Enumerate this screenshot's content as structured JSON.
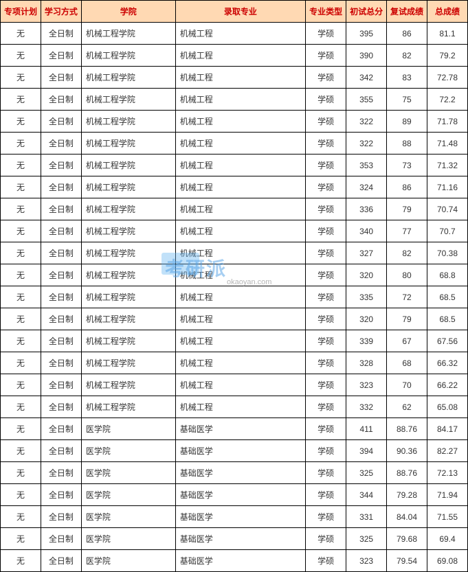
{
  "watermark": {
    "main": "考研派",
    "sub": "okaoyan.com"
  },
  "table": {
    "header_bg": "#ffd9b3",
    "header_color": "#cc0000",
    "border_color": "#000000",
    "columns": [
      {
        "label": "专项计划",
        "align": "center"
      },
      {
        "label": "学习方式",
        "align": "center"
      },
      {
        "label": "学院",
        "align": "left"
      },
      {
        "label": "录取专业",
        "align": "left"
      },
      {
        "label": "专业类型",
        "align": "center"
      },
      {
        "label": "初试总分",
        "align": "center"
      },
      {
        "label": "复试成绩",
        "align": "center"
      },
      {
        "label": "总成绩",
        "align": "center"
      }
    ],
    "rows": [
      [
        "无",
        "全日制",
        "机械工程学院",
        "机械工程",
        "学硕",
        "395",
        "86",
        "81.1"
      ],
      [
        "无",
        "全日制",
        "机械工程学院",
        "机械工程",
        "学硕",
        "390",
        "82",
        "79.2"
      ],
      [
        "无",
        "全日制",
        "机械工程学院",
        "机械工程",
        "学硕",
        "342",
        "83",
        "72.78"
      ],
      [
        "无",
        "全日制",
        "机械工程学院",
        "机械工程",
        "学硕",
        "355",
        "75",
        "72.2"
      ],
      [
        "无",
        "全日制",
        "机械工程学院",
        "机械工程",
        "学硕",
        "322",
        "89",
        "71.78"
      ],
      [
        "无",
        "全日制",
        "机械工程学院",
        "机械工程",
        "学硕",
        "322",
        "88",
        "71.48"
      ],
      [
        "无",
        "全日制",
        "机械工程学院",
        "机械工程",
        "学硕",
        "353",
        "73",
        "71.32"
      ],
      [
        "无",
        "全日制",
        "机械工程学院",
        "机械工程",
        "学硕",
        "324",
        "86",
        "71.16"
      ],
      [
        "无",
        "全日制",
        "机械工程学院",
        "机械工程",
        "学硕",
        "336",
        "79",
        "70.74"
      ],
      [
        "无",
        "全日制",
        "机械工程学院",
        "机械工程",
        "学硕",
        "340",
        "77",
        "70.7"
      ],
      [
        "无",
        "全日制",
        "机械工程学院",
        "机械工程",
        "学硕",
        "327",
        "82",
        "70.38"
      ],
      [
        "无",
        "全日制",
        "机械工程学院",
        "机械工程",
        "学硕",
        "320",
        "80",
        "68.8"
      ],
      [
        "无",
        "全日制",
        "机械工程学院",
        "机械工程",
        "学硕",
        "335",
        "72",
        "68.5"
      ],
      [
        "无",
        "全日制",
        "机械工程学院",
        "机械工程",
        "学硕",
        "320",
        "79",
        "68.5"
      ],
      [
        "无",
        "全日制",
        "机械工程学院",
        "机械工程",
        "学硕",
        "339",
        "67",
        "67.56"
      ],
      [
        "无",
        "全日制",
        "机械工程学院",
        "机械工程",
        "学硕",
        "328",
        "68",
        "66.32"
      ],
      [
        "无",
        "全日制",
        "机械工程学院",
        "机械工程",
        "学硕",
        "323",
        "70",
        "66.22"
      ],
      [
        "无",
        "全日制",
        "机械工程学院",
        "机械工程",
        "学硕",
        "332",
        "62",
        "65.08"
      ],
      [
        "无",
        "全日制",
        "医学院",
        "基础医学",
        "学硕",
        "411",
        "88.76",
        "84.17"
      ],
      [
        "无",
        "全日制",
        "医学院",
        "基础医学",
        "学硕",
        "394",
        "90.36",
        "82.27"
      ],
      [
        "无",
        "全日制",
        "医学院",
        "基础医学",
        "学硕",
        "325",
        "88.76",
        "72.13"
      ],
      [
        "无",
        "全日制",
        "医学院",
        "基础医学",
        "学硕",
        "344",
        "79.28",
        "71.94"
      ],
      [
        "无",
        "全日制",
        "医学院",
        "基础医学",
        "学硕",
        "331",
        "84.04",
        "71.55"
      ],
      [
        "无",
        "全日制",
        "医学院",
        "基础医学",
        "学硕",
        "325",
        "79.68",
        "69.4"
      ],
      [
        "无",
        "全日制",
        "医学院",
        "基础医学",
        "学硕",
        "323",
        "79.54",
        "69.08"
      ]
    ]
  }
}
